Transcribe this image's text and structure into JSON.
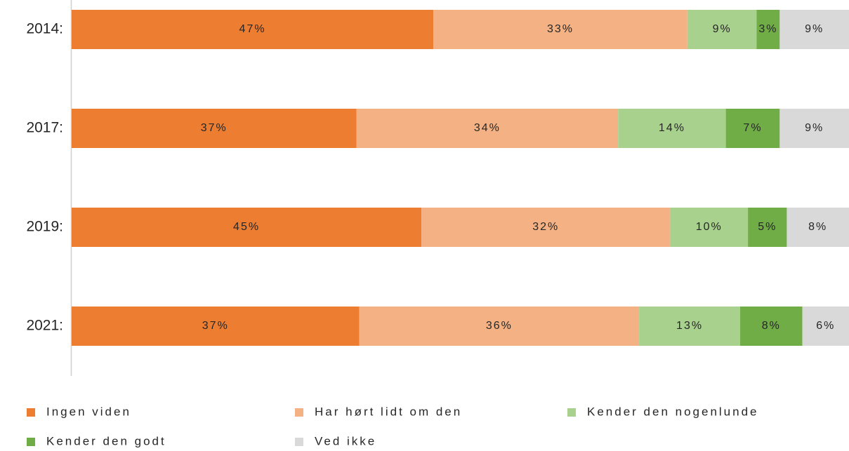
{
  "chart_data": {
    "type": "bar",
    "orientation": "horizontal",
    "categories": [
      "2014:",
      "2017:",
      "2019:",
      "2021:"
    ],
    "series": [
      {
        "name": "Ingen viden",
        "color": "#ed7d31",
        "values": [
          47,
          37,
          45,
          37
        ],
        "value_labels": [
          "47%",
          "37%",
          "45%",
          "37%"
        ]
      },
      {
        "name": "Har hørt lidt om den",
        "color": "#f4b183",
        "values": [
          33,
          34,
          32,
          36
        ],
        "value_labels": [
          "33%",
          "34%",
          "32%",
          "36%"
        ]
      },
      {
        "name": "Kender den nogenlunde",
        "color": "#a9d18e",
        "values": [
          9,
          14,
          10,
          13
        ],
        "value_labels": [
          "9%",
          "14%",
          "10%",
          "13%"
        ]
      },
      {
        "name": "Kender den godt",
        "color": "#70ad47",
        "values": [
          3,
          7,
          5,
          8
        ],
        "value_labels": [
          "3%",
          "7%",
          "5%",
          "8%"
        ]
      },
      {
        "name": "Ved ikke",
        "color": "#d9d9d9",
        "values": [
          9,
          9,
          8,
          6
        ],
        "value_labels": [
          "9%",
          "9%",
          "8%",
          "6%"
        ]
      }
    ]
  }
}
